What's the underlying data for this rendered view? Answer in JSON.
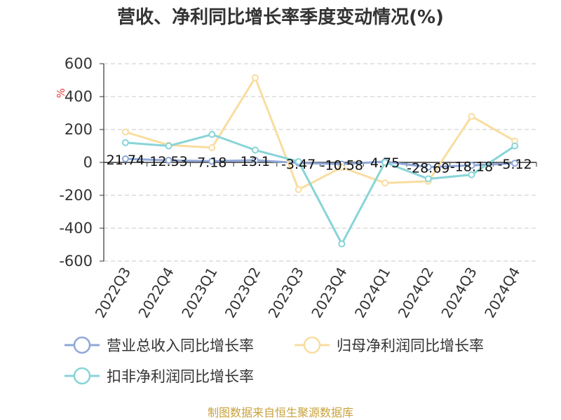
{
  "chart_data": {
    "type": "line",
    "title": "营收、净利同比增长率季度变动情况(%)",
    "ylabel": "%",
    "ylim": [
      -600,
      600
    ],
    "yticks": [
      600,
      400,
      200,
      0,
      -200,
      -400,
      -600
    ],
    "grid": true,
    "legend_position": "bottom",
    "categories": [
      "2022Q3",
      "2022Q4",
      "2023Q1",
      "2023Q2",
      "2023Q3",
      "2023Q4",
      "2024Q1",
      "2024Q2",
      "2024Q3",
      "2024Q4"
    ],
    "series": [
      {
        "name": "营业总收入同比增长率",
        "color": "#8fa8d8",
        "values": [
          21.74,
          12.53,
          7.18,
          13.1,
          -3.47,
          -10.58,
          4.75,
          -28.69,
          -18.18,
          -5.12
        ],
        "labels": [
          "21.74",
          "12.53",
          "7.18",
          "13.1",
          "-3.47",
          "-10.58",
          "4.75",
          "-28.69",
          "-18.18",
          "-5.12"
        ]
      },
      {
        "name": "归母净利润同比增长率",
        "color": "#f9dd9f",
        "values": [
          185,
          105,
          90,
          515,
          -165,
          -30,
          -125,
          -115,
          280,
          130
        ]
      },
      {
        "name": "扣非净利润同比增长率",
        "color": "#88d4d8",
        "values": [
          120,
          100,
          170,
          75,
          5,
          -495,
          0,
          -100,
          -75,
          100
        ]
      }
    ]
  },
  "footer": {
    "source": "制图数据来自恒生聚源数据库"
  }
}
